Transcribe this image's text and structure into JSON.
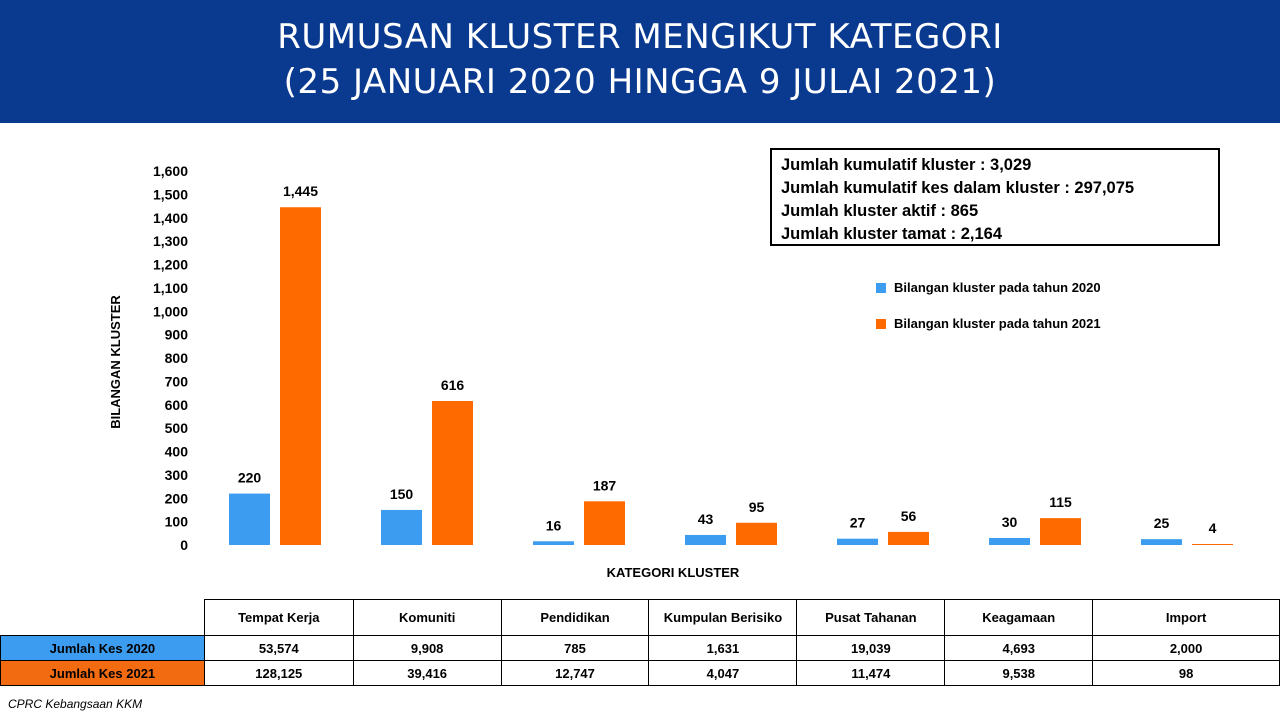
{
  "header": {
    "title_line1": "RUMUSAN KLUSTER MENGIKUT KATEGORI",
    "title_line2": "(25 JANUARI 2020 HINGGA 9 JULAI 2021)"
  },
  "summary": {
    "items": [
      "Jumlah kumulatif kluster : 3,029",
      "Jumlah kumulatif kes dalam kluster : 297,075",
      "Jumlah kluster aktif : 865",
      "Jumlah kluster tamat : 2,164"
    ]
  },
  "chart_data": {
    "type": "bar",
    "xlabel": "KATEGORI KLUSTER",
    "ylabel": "BILANGAN KLUSTER",
    "ylim": [
      0,
      1600
    ],
    "yticks": [
      0,
      100,
      200,
      300,
      400,
      500,
      600,
      700,
      800,
      900,
      1000,
      1100,
      1200,
      1300,
      1400,
      1500,
      1600
    ],
    "ytick_labels": [
      "0",
      "100",
      "200",
      "300",
      "400",
      "500",
      "600",
      "700",
      "800",
      "900",
      "1,000",
      "1,100",
      "1,200",
      "1,300",
      "1,400",
      "1,500",
      "1,600"
    ],
    "categories": [
      "Tempat Kerja",
      "Komuniti",
      "Pendidikan",
      "Kumpulan Berisiko",
      "Pusat Tahanan",
      "Keagamaan",
      "Import"
    ],
    "series": [
      {
        "name": "Bilangan kluster pada tahun 2020",
        "color": "#3b9cf0",
        "values": [
          220,
          150,
          16,
          43,
          27,
          30,
          25
        ],
        "labels": [
          "220",
          "150",
          "16",
          "43",
          "27",
          "30",
          "25"
        ]
      },
      {
        "name": "Bilangan kluster pada tahun 2021",
        "color": "#ff6a00",
        "values": [
          1445,
          616,
          187,
          95,
          56,
          115,
          4
        ],
        "labels": [
          "1,445",
          "616",
          "187",
          "95",
          "56",
          "115",
          "4"
        ]
      }
    ],
    "grid": false,
    "legend": "right"
  },
  "table": {
    "columns": [
      "Tempat Kerja",
      "Komuniti",
      "Pendidikan",
      "Kumpulan Berisiko",
      "Pusat Tahanan",
      "Keagamaan",
      "Import"
    ],
    "rows": [
      {
        "label": "Jumlah Kes 2020",
        "color": "#3b9cf0",
        "values": [
          "53,574",
          "9,908",
          "785",
          "1,631",
          "19,039",
          "4,693",
          "2,000"
        ]
      },
      {
        "label": "Jumlah Kes 2021",
        "color": "#f36b10",
        "values": [
          "128,125",
          "39,416",
          "12,747",
          "4,047",
          "11,474",
          "9,538",
          "98"
        ]
      }
    ]
  },
  "source": "CPRC Kebangsaan KKM"
}
